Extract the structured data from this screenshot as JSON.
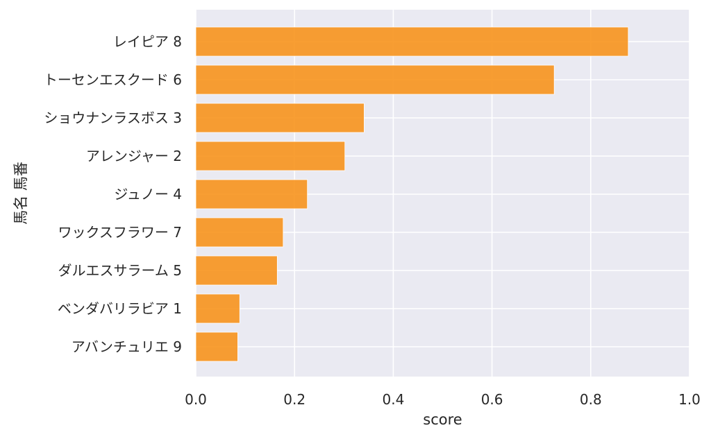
{
  "chart_data": {
    "type": "bar",
    "orientation": "horizontal",
    "title": "",
    "xlabel": "score",
    "ylabel": "馬名 馬番",
    "xlim": [
      0.0,
      1.0
    ],
    "xticks": [
      "0.0",
      "0.2",
      "0.4",
      "0.6",
      "0.8",
      "1.0"
    ],
    "grid": true,
    "colors": {
      "bar": "#F7941D",
      "plot_background": "#EAEAF2",
      "grid": "#FFFFFF",
      "text": "#262626"
    },
    "categories": [
      "レイピア 8",
      "トーセンエスクード 6",
      "ショウナンラスボス 3",
      "アレンジャー 2",
      "ジュノー 4",
      "ワックスフラワー 7",
      "ダルエスサラーム 5",
      "ベンダバリラビア 1",
      "アバンチュリエ 9"
    ],
    "values": [
      0.876,
      0.726,
      0.341,
      0.302,
      0.226,
      0.177,
      0.165,
      0.089,
      0.085
    ]
  }
}
